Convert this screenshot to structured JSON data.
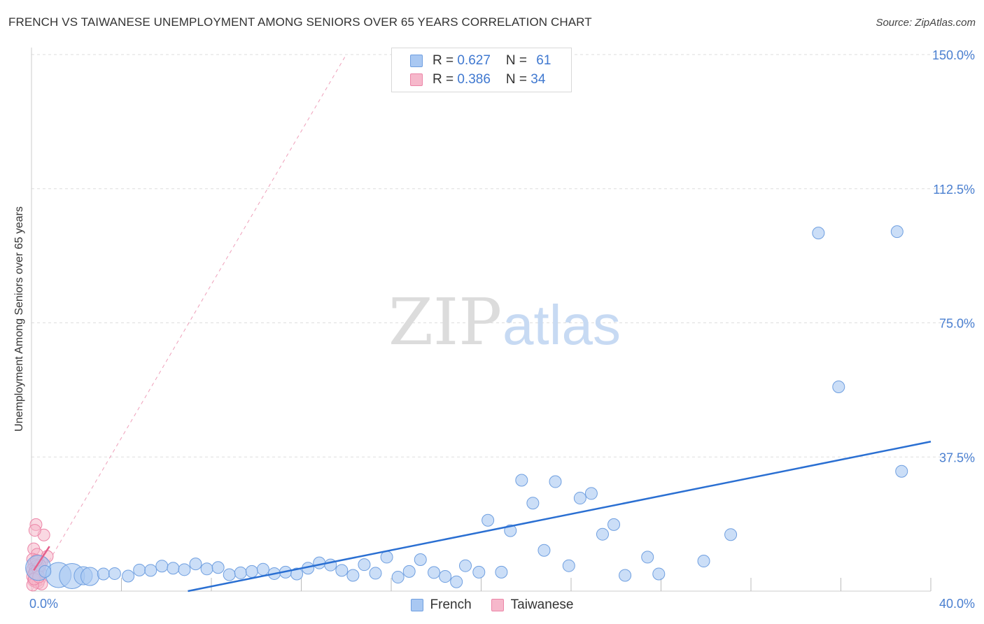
{
  "header": {
    "title": "FRENCH VS TAIWANESE UNEMPLOYMENT AMONG SENIORS OVER 65 YEARS CORRELATION CHART",
    "source": "Source: ZipAtlas.com"
  },
  "watermark": {
    "zip": "ZIP",
    "atlas": "atlas"
  },
  "legend": {
    "french": {
      "r_label": "R = ",
      "r_value": "0.627",
      "n_label": "N = ",
      "n_value": "61"
    },
    "taiwanese": {
      "r_label": "R = ",
      "r_value": "0.386",
      "n_label": "N = ",
      "n_value": "34"
    }
  },
  "colors": {
    "french_fill": "#a9c8f2",
    "french_stroke": "#6f9fe0",
    "french_line": "#2a6fd2",
    "taiwanese_fill": "#f6b8cb",
    "taiwanese_stroke": "#ec85a7",
    "taiwanese_line": "#e4608c",
    "grid": "#dddddd",
    "tick_text": "#4a7fd0"
  },
  "chart_data": {
    "type": "scatter",
    "title": "FRENCH VS TAIWANESE UNEMPLOYMENT AMONG SENIORS OVER 65 YEARS CORRELATION CHART",
    "xlabel": "",
    "ylabel": "Unemployment Among Seniors over 65 years",
    "xlim": [
      0,
      40
    ],
    "ylim": [
      0,
      150
    ],
    "x_tick_labels": [
      {
        "value": 0,
        "label": "0.0%"
      },
      {
        "value": 40,
        "label": "40.0%"
      }
    ],
    "y_tick_labels": [
      {
        "value": 37.5,
        "label": "37.5%"
      },
      {
        "value": 75,
        "label": "75.0%"
      },
      {
        "value": 112.5,
        "label": "112.5%"
      },
      {
        "value": 150,
        "label": "150.0%"
      }
    ],
    "series": [
      {
        "name": "French",
        "points": [
          {
            "x": 0.3,
            "y": 6.5,
            "s": 3
          },
          {
            "x": 1.2,
            "y": 4.5,
            "s": 3
          },
          {
            "x": 1.8,
            "y": 4.2,
            "s": 3
          },
          {
            "x": 2.3,
            "y": 4.3,
            "s": 2
          },
          {
            "x": 2.6,
            "y": 4.1,
            "s": 2
          },
          {
            "x": 3.2,
            "y": 4.8,
            "s": 1
          },
          {
            "x": 3.7,
            "y": 4.9,
            "s": 1
          },
          {
            "x": 4.3,
            "y": 4.2,
            "s": 1
          },
          {
            "x": 4.8,
            "y": 5.9,
            "s": 1
          },
          {
            "x": 5.3,
            "y": 5.8,
            "s": 1
          },
          {
            "x": 5.8,
            "y": 7.0,
            "s": 1
          },
          {
            "x": 6.3,
            "y": 6.4,
            "s": 1
          },
          {
            "x": 6.8,
            "y": 6.0,
            "s": 1
          },
          {
            "x": 7.3,
            "y": 7.6,
            "s": 1
          },
          {
            "x": 7.8,
            "y": 6.2,
            "s": 1
          },
          {
            "x": 8.3,
            "y": 6.6,
            "s": 1
          },
          {
            "x": 8.8,
            "y": 4.6,
            "s": 1
          },
          {
            "x": 9.3,
            "y": 5.1,
            "s": 1
          },
          {
            "x": 9.8,
            "y": 5.5,
            "s": 1
          },
          {
            "x": 10.3,
            "y": 6.1,
            "s": 1
          },
          {
            "x": 10.8,
            "y": 4.9,
            "s": 1
          },
          {
            "x": 11.3,
            "y": 5.3,
            "s": 1
          },
          {
            "x": 11.8,
            "y": 4.8,
            "s": 1
          },
          {
            "x": 12.3,
            "y": 6.4,
            "s": 1
          },
          {
            "x": 12.8,
            "y": 7.9,
            "s": 1
          },
          {
            "x": 13.3,
            "y": 7.3,
            "s": 1
          },
          {
            "x": 13.8,
            "y": 5.8,
            "s": 1
          },
          {
            "x": 14.3,
            "y": 4.4,
            "s": 1
          },
          {
            "x": 14.8,
            "y": 7.4,
            "s": 1
          },
          {
            "x": 15.3,
            "y": 5.0,
            "s": 1
          },
          {
            "x": 15.8,
            "y": 9.5,
            "s": 1
          },
          {
            "x": 16.3,
            "y": 3.9,
            "s": 1
          },
          {
            "x": 16.8,
            "y": 5.5,
            "s": 1
          },
          {
            "x": 17.3,
            "y": 8.8,
            "s": 1
          },
          {
            "x": 17.9,
            "y": 5.2,
            "s": 1
          },
          {
            "x": 18.4,
            "y": 4.1,
            "s": 1
          },
          {
            "x": 18.9,
            "y": 2.6,
            "s": 1
          },
          {
            "x": 19.3,
            "y": 7.1,
            "s": 1
          },
          {
            "x": 19.9,
            "y": 5.3,
            "s": 1
          },
          {
            "x": 20.3,
            "y": 19.8,
            "s": 1
          },
          {
            "x": 20.9,
            "y": 5.3,
            "s": 1
          },
          {
            "x": 21.3,
            "y": 16.9,
            "s": 1
          },
          {
            "x": 21.8,
            "y": 31.0,
            "s": 1
          },
          {
            "x": 22.3,
            "y": 24.6,
            "s": 1
          },
          {
            "x": 22.8,
            "y": 11.4,
            "s": 1
          },
          {
            "x": 23.3,
            "y": 30.6,
            "s": 1
          },
          {
            "x": 23.9,
            "y": 7.1,
            "s": 1
          },
          {
            "x": 24.4,
            "y": 26.0,
            "s": 1
          },
          {
            "x": 24.9,
            "y": 27.3,
            "s": 1
          },
          {
            "x": 25.4,
            "y": 15.9,
            "s": 1
          },
          {
            "x": 25.9,
            "y": 18.6,
            "s": 1
          },
          {
            "x": 26.4,
            "y": 4.4,
            "s": 1
          },
          {
            "x": 27.4,
            "y": 9.5,
            "s": 1
          },
          {
            "x": 27.9,
            "y": 4.8,
            "s": 1
          },
          {
            "x": 29.9,
            "y": 8.4,
            "s": 1
          },
          {
            "x": 31.1,
            "y": 15.8,
            "s": 1
          },
          {
            "x": 35.0,
            "y": 100.1,
            "s": 1
          },
          {
            "x": 35.9,
            "y": 57.1,
            "s": 1
          },
          {
            "x": 38.5,
            "y": 100.5,
            "s": 1
          },
          {
            "x": 38.7,
            "y": 33.5,
            "s": 1
          },
          {
            "x": 0.6,
            "y": 5.5,
            "s": 1
          }
        ],
        "trendline": {
          "x0": 0,
          "y0": -8.8,
          "x1": 40,
          "y1": 41.8
        }
      },
      {
        "name": "Taiwanese",
        "points": [
          {
            "x": 0.2,
            "y": 18.6,
            "s": 1
          },
          {
            "x": 0.55,
            "y": 15.7,
            "s": 1
          },
          {
            "x": 0.15,
            "y": 17.0,
            "s": 1
          },
          {
            "x": 0.1,
            "y": 11.8,
            "s": 1
          },
          {
            "x": 0.25,
            "y": 10.3,
            "s": 1
          },
          {
            "x": 0.7,
            "y": 9.7,
            "s": 1
          },
          {
            "x": 0.05,
            "y": 8.9,
            "s": 1
          },
          {
            "x": 0.3,
            "y": 8.4,
            "s": 1
          },
          {
            "x": 0.45,
            "y": 8.0,
            "s": 1
          },
          {
            "x": 0.1,
            "y": 7.4,
            "s": 1
          },
          {
            "x": 0.2,
            "y": 6.9,
            "s": 1
          },
          {
            "x": 0.35,
            "y": 6.5,
            "s": 1
          },
          {
            "x": 0.05,
            "y": 6.1,
            "s": 1
          },
          {
            "x": 0.15,
            "y": 5.8,
            "s": 1
          },
          {
            "x": 0.25,
            "y": 5.5,
            "s": 1
          },
          {
            "x": 0.4,
            "y": 5.2,
            "s": 1
          },
          {
            "x": 0.1,
            "y": 4.9,
            "s": 1
          },
          {
            "x": 0.2,
            "y": 4.6,
            "s": 1
          },
          {
            "x": 0.3,
            "y": 4.4,
            "s": 1
          },
          {
            "x": 0.05,
            "y": 4.1,
            "s": 1
          },
          {
            "x": 0.15,
            "y": 3.8,
            "s": 1
          },
          {
            "x": 0.25,
            "y": 3.5,
            "s": 1
          },
          {
            "x": 0.35,
            "y": 3.2,
            "s": 1
          },
          {
            "x": 0.1,
            "y": 2.9,
            "s": 1
          },
          {
            "x": 0.2,
            "y": 2.6,
            "s": 1
          },
          {
            "x": 0.3,
            "y": 2.3,
            "s": 1
          },
          {
            "x": 0.45,
            "y": 2.0,
            "s": 1
          },
          {
            "x": 0.05,
            "y": 1.7,
            "s": 1
          },
          {
            "x": 0.15,
            "y": 5.0,
            "s": 1
          },
          {
            "x": 0.28,
            "y": 6.3,
            "s": 1
          },
          {
            "x": 0.38,
            "y": 7.2,
            "s": 1
          },
          {
            "x": 0.12,
            "y": 3.4,
            "s": 1
          },
          {
            "x": 0.22,
            "y": 8.6,
            "s": 1
          },
          {
            "x": 0.32,
            "y": 4.0,
            "s": 1
          }
        ],
        "trendline": {
          "x0": 0.1,
          "y0": 5.8,
          "x1": 0.8,
          "y1": 12.5
        },
        "reference_line": {
          "x0": 0,
          "y0": 0,
          "x1": 14.0,
          "y1": 150
        }
      }
    ]
  }
}
